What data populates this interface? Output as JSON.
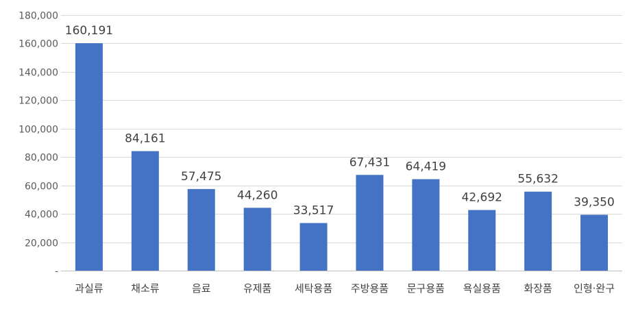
{
  "chart_data": {
    "type": "bar",
    "categories": [
      "과실류",
      "채소류",
      "음료",
      "유제품",
      "세탁용품",
      "주방용품",
      "문구용품",
      "욕실용품",
      "화장품",
      "인형·완구"
    ],
    "values": [
      160191,
      84161,
      57475,
      44260,
      33517,
      67431,
      64419,
      42692,
      55632,
      39350
    ],
    "value_labels": [
      "160,191",
      "84,161",
      "57,475",
      "44,260",
      "33,517",
      "67,431",
      "64,419",
      "42,692",
      "55,632",
      "39,350"
    ],
    "y_ticks": [
      0,
      20000,
      40000,
      60000,
      80000,
      100000,
      120000,
      140000,
      160000,
      180000
    ],
    "y_tick_labels": [
      "-",
      "20,000",
      "40,000",
      "60,000",
      "80,000",
      "100,000",
      "120,000",
      "140,000",
      "160,000",
      "180,000"
    ],
    "ylim": [
      0,
      180000
    ],
    "title": "",
    "xlabel": "",
    "ylabel": "",
    "grid": true,
    "legend": "none",
    "colors": {
      "bar": "#4472c4"
    }
  }
}
